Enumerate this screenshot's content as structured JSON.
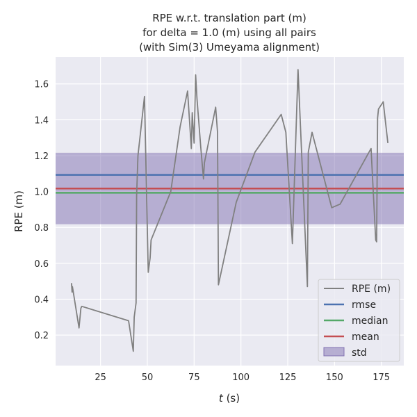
{
  "chart_data": {
    "type": "line",
    "title_lines": [
      "RPE w.r.t. translation part (m)",
      "for delta = 1.0 (m) using all pairs",
      "(with Sim(3) Umeyama alignment)"
    ],
    "xlabel_var": "t",
    "xlabel_unit": " (s)",
    "ylabel": "RPE (m)",
    "xlim": [
      1,
      187
    ],
    "ylim": [
      0.03,
      1.75
    ],
    "xticks": [
      25,
      50,
      75,
      100,
      125,
      150,
      175
    ],
    "yticks": [
      0.2,
      0.4,
      0.6,
      0.8,
      1.0,
      1.2,
      1.4,
      1.6
    ],
    "grid": true,
    "legend_position": "lower-right",
    "series": [
      {
        "name": "RPE (m)",
        "color": "#808080",
        "x": [
          9.5,
          9.8,
          10.0,
          13.5,
          14.5,
          15.0,
          40.0,
          42.5,
          43.0,
          44.0,
          44.3,
          45.0,
          48.5,
          50.5,
          51.5,
          52.0,
          62.5,
          67.5,
          71.5,
          73.5,
          74.0,
          75.0,
          75.8,
          76.5,
          78.5,
          80.0,
          80.5,
          86.5,
          87.5,
          88.0,
          97.5,
          107.5,
          121.5,
          124.0,
          127.5,
          130.5,
          135.5,
          136.0,
          138.0,
          148.5,
          153.0,
          169.5,
          172.0,
          172.5,
          173.0,
          173.5,
          176.0,
          178.5
        ],
        "y": [
          0.49,
          0.44,
          0.47,
          0.24,
          0.35,
          0.36,
          0.28,
          0.11,
          0.3,
          0.38,
          0.98,
          1.2,
          1.53,
          0.55,
          0.63,
          0.73,
          1.0,
          1.36,
          1.56,
          1.24,
          1.44,
          1.27,
          1.65,
          1.52,
          1.25,
          1.07,
          1.16,
          1.47,
          1.33,
          0.48,
          0.94,
          1.22,
          1.43,
          1.33,
          0.71,
          1.68,
          0.47,
          1.22,
          1.33,
          0.91,
          0.93,
          1.24,
          0.73,
          0.72,
          1.41,
          1.46,
          1.5,
          1.27
        ]
      },
      {
        "name": "rmse",
        "color": "#4c72b0",
        "value": 1.093
      },
      {
        "name": "median",
        "color": "#55a868",
        "value": 0.993
      },
      {
        "name": "mean",
        "color": "#c44e52",
        "value": 1.017
      },
      {
        "name": "std",
        "color": "#8172b2",
        "range": [
          0.818,
          1.216
        ]
      }
    ]
  },
  "colors": {
    "plot_bg": "#eaeaf2",
    "grid": "#ffffff"
  }
}
